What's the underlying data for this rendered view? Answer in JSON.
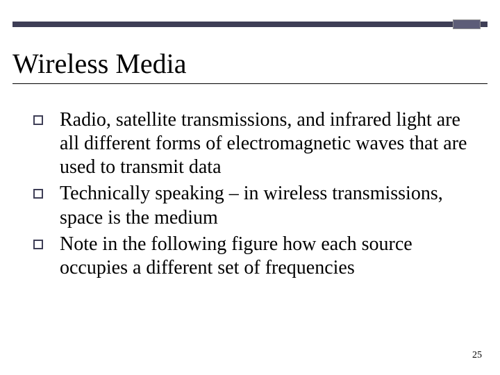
{
  "colors": {
    "bar_main": "#3e3e56",
    "bar_box_fill": "#5d5d78",
    "bar_box_border": "#949494",
    "bullet_border": "#3e3e56",
    "text": "#000000",
    "background": "#ffffff"
  },
  "typography": {
    "heading_fontsize": 40,
    "body_fontsize": 28,
    "pagenum_fontsize": 14,
    "font_family": "Times New Roman"
  },
  "heading": "Wireless Media",
  "bullets": [
    "Radio, satellite transmissions, and infrared light are all different forms of electromagnetic waves that are used to transmit data",
    "Technically speaking – in wireless transmissions, space is the medium",
    "Note in the following figure how each source occupies a different set of frequencies"
  ],
  "page_number": "25"
}
